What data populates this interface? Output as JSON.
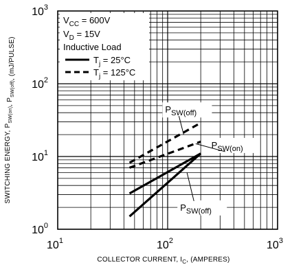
{
  "chart_data": {
    "type": "line",
    "x_scale": "log",
    "y_scale": "log",
    "xlim": [
      10,
      1000
    ],
    "ylim": [
      1,
      1000
    ],
    "grid": true,
    "legend_position": "top-left",
    "xlabel": {
      "main": "COLLECTOR CURRENT, I",
      "sub": "C",
      "suffix": ", (AMPERES)"
    },
    "ylabel": {
      "parts": [
        {
          "t": "SWITCHING ENERGY, P"
        },
        {
          "t": "SW(on)",
          "sub": true
        },
        {
          "t": ", P"
        },
        {
          "t": "SW(off)",
          "sub": true
        },
        {
          "t": ", (mJ/PULSE)"
        }
      ]
    },
    "x_ticks": [
      {
        "value": 10,
        "base": "10",
        "exp": "1"
      },
      {
        "value": 100,
        "base": "10",
        "exp": "2"
      },
      {
        "value": 1000,
        "base": "10",
        "exp": "3"
      }
    ],
    "y_ticks": [
      {
        "value": 1,
        "base": "10",
        "exp": "0"
      },
      {
        "value": 10,
        "base": "10",
        "exp": "1"
      },
      {
        "value": 100,
        "base": "10",
        "exp": "2"
      },
      {
        "value": 1000,
        "base": "10",
        "exp": "3"
      }
    ],
    "conditions": [
      {
        "main": "V",
        "sub": "CC",
        "rest": " = 600V"
      },
      {
        "main": "V",
        "sub": "D",
        "rest": " = 15V"
      },
      {
        "main": "Inductive Load",
        "sub": "",
        "rest": ""
      }
    ],
    "legend": [
      {
        "style": "solid",
        "main": "T",
        "sub": "j",
        "rest": " = 25°C"
      },
      {
        "style": "dashed",
        "main": "T",
        "sub": "j",
        "rest": " = 125°C"
      }
    ],
    "series": [
      {
        "label": "P_SW(on), Tj = 25°C",
        "style": "solid",
        "x": [
          45,
          200
        ],
        "y": [
          3.1,
          11
        ]
      },
      {
        "label": "P_SW(off), Tj = 25°C",
        "style": "solid",
        "x": [
          45,
          200
        ],
        "y": [
          1.5,
          11
        ]
      },
      {
        "label": "P_SW(on), Tj = 125°C",
        "style": "dashed",
        "x": [
          45,
          200
        ],
        "y": [
          7.0,
          16
        ]
      },
      {
        "label": "P_SW(off), Tj = 125°C",
        "style": "dashed",
        "x": [
          45,
          200
        ],
        "y": [
          8.2,
          29
        ]
      }
    ],
    "annotations": [
      {
        "main": "P",
        "sub": "SW(off)",
        "x": 95,
        "y": 40
      },
      {
        "main": "P",
        "sub": "SW(on)",
        "x": 250,
        "y": 13
      },
      {
        "main": "P",
        "sub": "SW(off)",
        "x": 130,
        "y": 1.8
      }
    ]
  }
}
